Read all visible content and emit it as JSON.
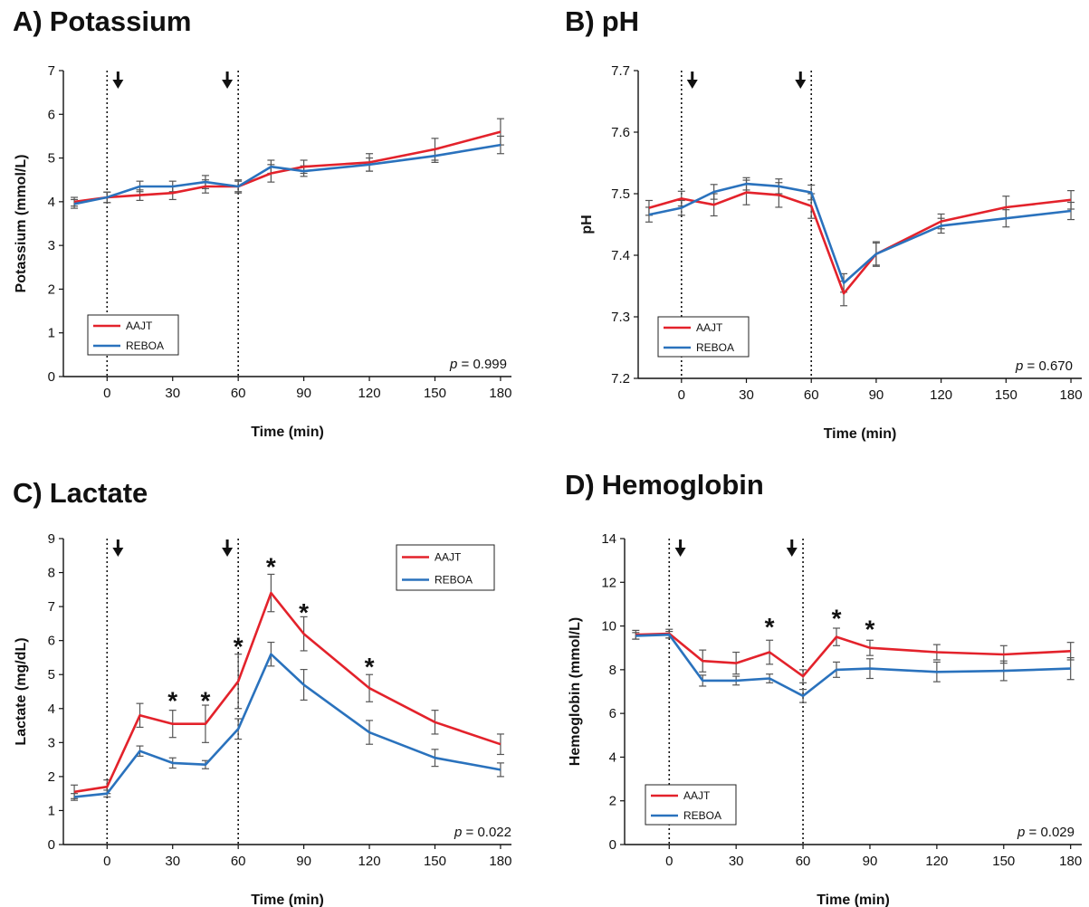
{
  "colors": {
    "AAJT": "#e3222b",
    "REBOA": "#2a72bd",
    "error_bar": "#555555",
    "axis": "#111111"
  },
  "chart_data": [
    {
      "type": "line",
      "panel_label": "A)",
      "title": "Potassium",
      "xlabel": "Time (min)",
      "ylabel": "Potassium (mmol/L)",
      "xlim": [
        -20,
        185
      ],
      "ylim": [
        0,
        7
      ],
      "xticks": [
        0,
        30,
        60,
        90,
        120,
        150,
        180
      ],
      "yticks": [
        0,
        1,
        2,
        3,
        4,
        5,
        6,
        7
      ],
      "ytick_labels": [
        "0",
        "1",
        "2",
        "3",
        "4",
        "5",
        "6",
        "7"
      ],
      "x": [
        -15,
        0,
        15,
        30,
        45,
        60,
        75,
        90,
        120,
        150,
        180
      ],
      "series": [
        {
          "name": "AAJT",
          "values": [
            4.0,
            4.1,
            4.15,
            4.2,
            4.35,
            4.35,
            4.65,
            4.8,
            4.9,
            5.2,
            5.6
          ],
          "errors": [
            0.1,
            0.12,
            0.12,
            0.15,
            0.15,
            0.15,
            0.2,
            0.15,
            0.2,
            0.25,
            0.3
          ]
        },
        {
          "name": "REBOA",
          "values": [
            3.95,
            4.1,
            4.35,
            4.35,
            4.45,
            4.35,
            4.8,
            4.7,
            4.85,
            5.05,
            5.3
          ],
          "errors": [
            0.1,
            0.12,
            0.12,
            0.12,
            0.15,
            0.12,
            0.15,
            0.12,
            0.15,
            0.15,
            0.2
          ]
        }
      ],
      "vlines": [
        0,
        60
      ],
      "arrows": [
        5,
        55
      ],
      "stars": [],
      "legend": {
        "position": "bottom-left",
        "entries": [
          "AAJT",
          "REBOA"
        ]
      },
      "p_prefix": "p",
      "p_value": " = 0.999"
    },
    {
      "type": "line",
      "panel_label": "B)",
      "title": "pH",
      "xlabel": "Time (min)",
      "ylabel": "pH",
      "xlim": [
        -20,
        185
      ],
      "ylim": [
        7.2,
        7.7
      ],
      "xticks": [
        0,
        30,
        60,
        90,
        120,
        150,
        180
      ],
      "yticks": [
        7.2,
        7.3,
        7.4,
        7.5,
        7.6,
        7.7
      ],
      "ytick_labels": [
        "7.2",
        "7.3",
        "7.4",
        "7.5",
        "7.6",
        "7.7"
      ],
      "x": [
        -15,
        0,
        15,
        30,
        45,
        60,
        75,
        90,
        120,
        150,
        180
      ],
      "series": [
        {
          "name": "AAJT",
          "values": [
            7.477,
            7.492,
            7.482,
            7.502,
            7.498,
            7.48,
            7.338,
            7.402,
            7.455,
            7.478,
            7.49
          ],
          "errors": [
            0.012,
            0.012,
            0.018,
            0.02,
            0.02,
            0.02,
            0.02,
            0.02,
            0.012,
            0.018,
            0.015
          ]
        },
        {
          "name": "REBOA",
          "values": [
            7.466,
            7.477,
            7.503,
            7.516,
            7.512,
            7.502,
            7.355,
            7.402,
            7.448,
            7.46,
            7.472
          ],
          "errors": [
            0.012,
            0.012,
            0.012,
            0.01,
            0.012,
            0.012,
            0.015,
            0.018,
            0.012,
            0.014,
            0.014
          ]
        }
      ],
      "vlines": [
        0,
        60
      ],
      "arrows": [
        5,
        55
      ],
      "stars": [],
      "legend": {
        "position": "bottom-left",
        "entries": [
          "AAJT",
          "REBOA"
        ]
      },
      "p_prefix": "p",
      "p_value": " = 0.670"
    },
    {
      "type": "line",
      "panel_label": "C)",
      "title": "Lactate",
      "xlabel": "Time (min)",
      "ylabel": "Lactate (mg/dL)",
      "xlim": [
        -20,
        185
      ],
      "ylim": [
        0,
        9
      ],
      "xticks": [
        0,
        30,
        60,
        90,
        120,
        150,
        180
      ],
      "yticks": [
        0,
        1,
        2,
        3,
        4,
        5,
        6,
        7,
        8,
        9
      ],
      "ytick_labels": [
        "0",
        "1",
        "2",
        "3",
        "4",
        "5",
        "6",
        "7",
        "8",
        "9"
      ],
      "x": [
        -15,
        0,
        15,
        30,
        45,
        60,
        75,
        90,
        120,
        150,
        180
      ],
      "series": [
        {
          "name": "AAJT",
          "values": [
            1.55,
            1.7,
            3.8,
            3.55,
            3.55,
            4.8,
            7.4,
            6.2,
            4.6,
            3.6,
            2.95
          ],
          "errors": [
            0.2,
            0.2,
            0.35,
            0.4,
            0.55,
            0.8,
            0.55,
            0.5,
            0.4,
            0.35,
            0.3
          ]
        },
        {
          "name": "REBOA",
          "values": [
            1.4,
            1.5,
            2.75,
            2.4,
            2.35,
            3.4,
            5.6,
            4.7,
            3.3,
            2.55,
            2.2
          ],
          "errors": [
            0.1,
            0.1,
            0.15,
            0.15,
            0.12,
            0.3,
            0.35,
            0.45,
            0.35,
            0.25,
            0.2
          ]
        }
      ],
      "vlines": [
        0,
        60
      ],
      "arrows": [
        5,
        55
      ],
      "stars": [
        {
          "x": 30,
          "y": 4.35
        },
        {
          "x": 45,
          "y": 4.35
        },
        {
          "x": 60,
          "y": 5.95
        },
        {
          "x": 75,
          "y": 8.3
        },
        {
          "x": 90,
          "y": 6.95
        },
        {
          "x": 120,
          "y": 5.35
        }
      ],
      "legend": {
        "position": "top-right",
        "entries": [
          "AAJT",
          "REBOA"
        ]
      },
      "p_prefix": "p",
      "p_value": " = 0.022"
    },
    {
      "type": "line",
      "panel_label": "D)",
      "title": "Hemoglobin",
      "xlabel": "Time (min)",
      "ylabel": "Hemoglobin (mmol/L)",
      "xlim": [
        -20,
        185
      ],
      "ylim": [
        0,
        14
      ],
      "xticks": [
        0,
        30,
        60,
        90,
        120,
        150,
        180
      ],
      "yticks": [
        0,
        2,
        4,
        6,
        8,
        10,
        12,
        14
      ],
      "ytick_labels": [
        "0",
        "2",
        "4",
        "6",
        "8",
        "10",
        "12",
        "14"
      ],
      "x": [
        -15,
        0,
        15,
        30,
        45,
        60,
        75,
        90,
        120,
        150,
        180
      ],
      "series": [
        {
          "name": "AAJT",
          "values": [
            9.6,
            9.65,
            8.4,
            8.3,
            8.8,
            7.7,
            9.5,
            9.0,
            8.8,
            8.7,
            8.85
          ],
          "errors": [
            0.2,
            0.2,
            0.5,
            0.5,
            0.55,
            0.3,
            0.4,
            0.35,
            0.35,
            0.4,
            0.4
          ]
        },
        {
          "name": "REBOA",
          "values": [
            9.55,
            9.6,
            7.5,
            7.5,
            7.6,
            6.8,
            8.0,
            8.05,
            7.9,
            7.95,
            8.05
          ],
          "errors": [
            0.15,
            0.15,
            0.25,
            0.2,
            0.2,
            0.3,
            0.35,
            0.45,
            0.45,
            0.45,
            0.5
          ]
        }
      ],
      "vlines": [
        0,
        60
      ],
      "arrows": [
        5,
        55
      ],
      "stars": [
        {
          "x": 45,
          "y": 10.15
        },
        {
          "x": 75,
          "y": 10.55
        },
        {
          "x": 90,
          "y": 10.05
        }
      ],
      "legend": {
        "position": "bottom-left",
        "entries": [
          "AAJT",
          "REBOA"
        ]
      },
      "p_prefix": "p",
      "p_value": " = 0.029"
    }
  ]
}
